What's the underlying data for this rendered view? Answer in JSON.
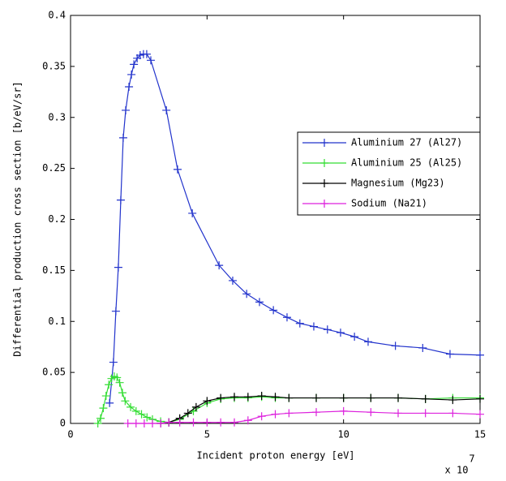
{
  "chart_data": {
    "type": "line",
    "x_label": "Incident proton energy [eV]",
    "y_label": "Differential production cross section [b/eV/sr]",
    "x_multiplier": {
      "base": "x 10",
      "exponent": "7"
    },
    "xlim": [
      0,
      15
    ],
    "xticks": [
      0,
      5,
      10,
      15
    ],
    "ylim": [
      0,
      0.4
    ],
    "yticks": [
      0,
      0.05,
      0.1,
      0.15,
      0.2,
      0.25,
      0.3,
      0.35,
      0.4
    ],
    "grid": false,
    "legend_position": "right",
    "series": [
      {
        "name": "Aluminium 27 (Al27)",
        "color": "#2233cc",
        "x": [
          1.43,
          1.57,
          1.66,
          1.75,
          1.84,
          1.93,
          2.02,
          2.14,
          2.23,
          2.32,
          2.44,
          2.55,
          2.67,
          2.79,
          2.94,
          3.51,
          3.92,
          4.46,
          5.44,
          5.94,
          6.45,
          6.92,
          7.43,
          7.93,
          8.4,
          8.91,
          9.41,
          9.89,
          10.4,
          10.9,
          11.9,
          12.9,
          13.9,
          15
        ],
        "values": [
          0.02,
          0.06,
          0.11,
          0.153,
          0.219,
          0.28,
          0.307,
          0.33,
          0.342,
          0.352,
          0.358,
          0.361,
          0.362,
          0.362,
          0.356,
          0.307,
          0.249,
          0.206,
          0.155,
          0.14,
          0.127,
          0.119,
          0.111,
          0.104,
          0.098,
          0.095,
          0.092,
          0.089,
          0.085,
          0.08,
          0.076,
          0.074,
          0.068,
          0.067
        ]
      },
      {
        "name": "Aluminium 25 (Al25)",
        "color": "#33dd33",
        "x": [
          1.0,
          1.1,
          1.2,
          1.3,
          1.4,
          1.5,
          1.6,
          1.7,
          1.8,
          1.9,
          2.0,
          2.2,
          2.4,
          2.6,
          2.8,
          3.0,
          3.3,
          3.6,
          4.0,
          4.5,
          5.0,
          5.5,
          6,
          6.5,
          7,
          7.5,
          8,
          9,
          10,
          11,
          12,
          13,
          14,
          15
        ],
        "values": [
          0,
          0.005,
          0.015,
          0.027,
          0.038,
          0.044,
          0.046,
          0.045,
          0.04,
          0.03,
          0.022,
          0.016,
          0.012,
          0.009,
          0.006,
          0.004,
          0.002,
          0.001,
          0.004,
          0.012,
          0.02,
          0.024,
          0.025,
          0.025,
          0.026,
          0.025,
          0.025,
          0.025,
          0.025,
          0.025,
          0.025,
          0.024,
          0.025,
          0.025
        ]
      },
      {
        "name": "Magnesium (Mg23)",
        "color": "#000000",
        "x": [
          3.3,
          3.6,
          4.0,
          4.3,
          4.6,
          5.0,
          5.5,
          6,
          6.5,
          7,
          7.5,
          8,
          9,
          10,
          11,
          12,
          13,
          14,
          15
        ],
        "values": [
          0,
          0.001,
          0.005,
          0.01,
          0.016,
          0.022,
          0.025,
          0.026,
          0.026,
          0.027,
          0.026,
          0.025,
          0.025,
          0.025,
          0.025,
          0.025,
          0.024,
          0.023,
          0.024
        ]
      },
      {
        "name": "Sodium (Na21)",
        "color": "#dd22dd",
        "x": [
          2.1,
          2.4,
          2.7,
          3.0,
          3.3,
          3.6,
          4,
          4.5,
          5,
          5.5,
          6,
          6.5,
          7,
          7.5,
          8,
          9,
          10,
          11,
          12,
          13,
          14,
          15
        ],
        "values": [
          0,
          0,
          0,
          0,
          0,
          0.001,
          0.001,
          0.001,
          0.001,
          0.001,
          0.001,
          0.003,
          0.007,
          0.009,
          0.01,
          0.011,
          0.012,
          0.011,
          0.01,
          0.01,
          0.01,
          0.009
        ]
      }
    ]
  }
}
